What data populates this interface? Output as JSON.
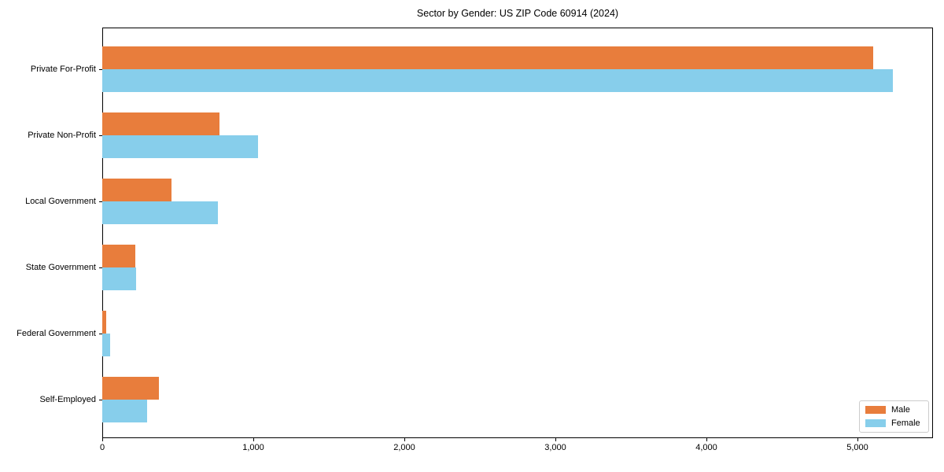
{
  "title": "Sector by Gender: US ZIP Code 60914 (2024)",
  "chart_data": {
    "type": "bar",
    "orientation": "horizontal",
    "title": "Sector by Gender: US ZIP Code 60914 (2024)",
    "xlabel": "",
    "ylabel": "",
    "categories": [
      "Private For-Profit",
      "Private Non-Profit",
      "Local Government",
      "State Government",
      "Federal Government",
      "Self-Employed"
    ],
    "series": [
      {
        "name": "Male",
        "color": "#e87d3c",
        "values": [
          5105,
          776,
          458,
          219,
          26,
          374
        ]
      },
      {
        "name": "Female",
        "color": "#87ceeb",
        "values": [
          5234,
          1031,
          766,
          224,
          50,
          297
        ]
      }
    ],
    "xlim": [
      0,
      5500
    ],
    "xticks": [
      0,
      1000,
      2000,
      3000,
      4000,
      5000
    ],
    "xtick_labels": [
      "0",
      "1,000",
      "2,000",
      "3,000",
      "4,000",
      "5,000"
    ],
    "grid": false,
    "legend_position": "lower right",
    "colors": {
      "male": "#e87d3c",
      "female": "#87ceeb",
      "spine": "#000000",
      "legend_border": "#cccccc",
      "background": "#ffffff"
    }
  }
}
